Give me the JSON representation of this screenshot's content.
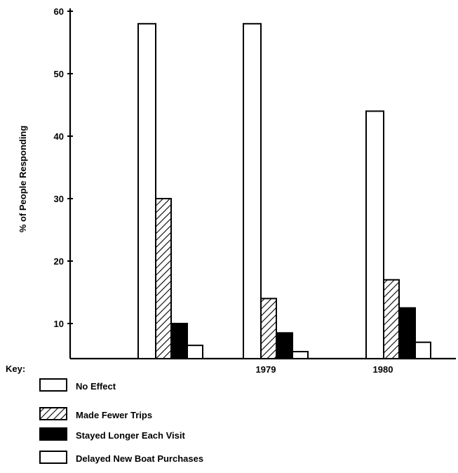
{
  "chart_data": {
    "type": "bar",
    "categories": [
      "",
      "1979",
      "1980"
    ],
    "ylabel": "% of People Responding",
    "xlabel": "",
    "ylim": [
      0,
      60
    ],
    "yticks": [
      10,
      20,
      30,
      40,
      50,
      60
    ],
    "grid": false,
    "legend_title": "Key:",
    "legend_position": "bottom-left",
    "series": [
      {
        "name": "No Effect",
        "pattern": "white",
        "values": [
          58,
          58,
          44
        ]
      },
      {
        "name": "Made Fewer Trips",
        "pattern": "hatched",
        "values": [
          30,
          14,
          17
        ]
      },
      {
        "name": "Stayed Longer Each Visit",
        "pattern": "black",
        "values": [
          10,
          8.5,
          12.5
        ]
      },
      {
        "name": "Delayed New Boat Purchases",
        "pattern": "white",
        "values": [
          6.5,
          5.5,
          7
        ]
      }
    ]
  }
}
